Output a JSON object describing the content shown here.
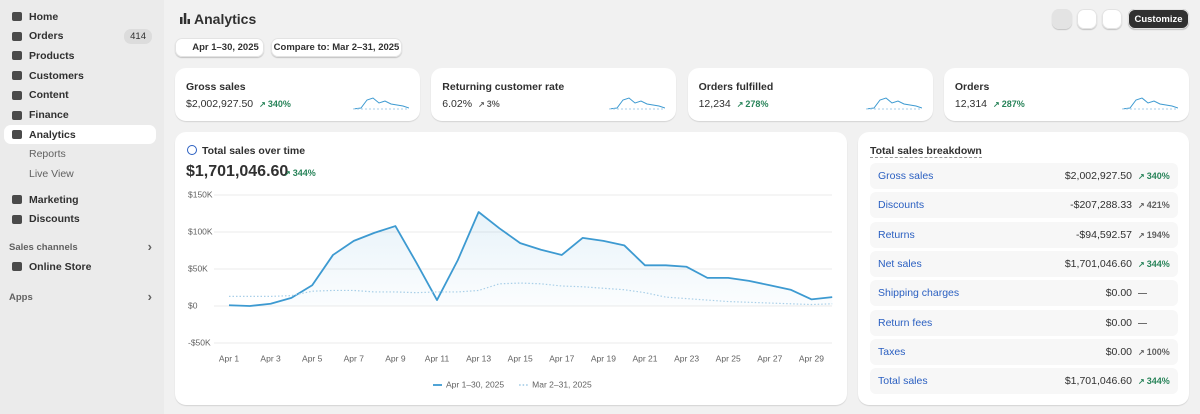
{
  "sidebar": {
    "items": [
      {
        "label": "Home"
      },
      {
        "label": "Orders",
        "badge": 414
      },
      {
        "label": "Products"
      },
      {
        "label": "Customers"
      },
      {
        "label": "Content"
      },
      {
        "label": "Finance"
      },
      {
        "label": "Analytics",
        "active": true
      }
    ],
    "sub_items": [
      "Reports",
      "Live View"
    ],
    "items2": [
      {
        "label": "Marketing"
      },
      {
        "label": "Discounts"
      }
    ],
    "sales_channels": {
      "title": "Sales channels",
      "items": [
        "Online Store"
      ]
    },
    "apps": {
      "title": "Apps"
    }
  },
  "header": {
    "title": "Analytics",
    "button": "Customize",
    "date_range": "Apr 1–30, 2025",
    "compare": "Compare to: Mar 2–31, 2025"
  },
  "kpis": [
    {
      "label": "Gross sales",
      "value": "$2,002,927.50",
      "change": "340%",
      "trend": "up"
    },
    {
      "label": "Returning customer rate",
      "value": "6.02%",
      "change": "3%",
      "trend": "neutral"
    },
    {
      "label": "Orders fulfilled",
      "value": "12,234",
      "change": "278%",
      "trend": "up"
    },
    {
      "label": "Orders",
      "value": "12,314",
      "change": "287%",
      "trend": "up"
    }
  ],
  "chart_card": {
    "title": "Total sales over time",
    "total": "$1,701,046.60",
    "change": "344%",
    "trend": "up"
  },
  "chart_data": {
    "type": "line",
    "categories": [
      "Apr 1",
      null,
      "Apr 3",
      null,
      "Apr 5",
      null,
      "Apr 7",
      null,
      "Apr 9",
      null,
      "Apr 11",
      null,
      "Apr 13",
      null,
      "Apr 15",
      null,
      "Apr 17",
      null,
      "Apr 19",
      null,
      "Apr 21",
      null,
      "Apr 23",
      null,
      "Apr 25",
      null,
      "Apr 27",
      null,
      "Apr 29",
      null
    ],
    "series": [
      {
        "name": "Apr 1–30, 2025",
        "color": "#3d9ad1",
        "values": [
          1000,
          0,
          3000,
          11000,
          28000,
          69000,
          88000,
          99000,
          108000,
          59000,
          8000,
          62000,
          127000,
          105000,
          85000,
          76000,
          69000,
          92000,
          88000,
          82000,
          55000,
          55000,
          53000,
          38000,
          38000,
          34000,
          28000,
          22000,
          9000,
          12000
        ]
      },
      {
        "name": "Mar 2–31, 2025",
        "color": "#a9cfe8",
        "dashed": true,
        "values": [
          13000,
          13000,
          13000,
          14000,
          20000,
          21000,
          21000,
          19000,
          19000,
          18000,
          19000,
          19000,
          21000,
          30000,
          31000,
          30000,
          27000,
          26000,
          24000,
          22000,
          18000,
          12000,
          10000,
          8000,
          6000,
          5000,
          4000,
          3000,
          2000,
          3000
        ]
      }
    ],
    "ylim": [
      -50000,
      150000
    ],
    "yticks": [
      {
        "value": -50000,
        "label": "-$50K"
      },
      {
        "value": 0,
        "label": "$0"
      },
      {
        "value": 50000,
        "label": "$50K"
      },
      {
        "value": 100000,
        "label": "$100K"
      },
      {
        "value": 150000,
        "label": "$150K"
      }
    ],
    "grid": true,
    "legend": "bottom"
  },
  "breakdown": {
    "title": "Total sales breakdown",
    "rows": [
      {
        "label": "Gross sales",
        "value": "$2,002,927.50",
        "change": "340%",
        "trend": "up"
      },
      {
        "label": "Discounts",
        "value": "-$207,288.33",
        "change": "421%",
        "trend": "neutral"
      },
      {
        "label": "Returns",
        "value": "-$94,592.57",
        "change": "194%",
        "trend": "neutral"
      },
      {
        "label": "Net sales",
        "value": "$1,701,046.60",
        "change": "344%",
        "trend": "up"
      },
      {
        "label": "Shipping charges",
        "value": "$0.00",
        "change": "—",
        "trend": "none"
      },
      {
        "label": "Return fees",
        "value": "$0.00",
        "change": "—",
        "trend": "none"
      },
      {
        "label": "Taxes",
        "value": "$0.00",
        "change": "100%",
        "trend": "neutral"
      },
      {
        "label": "Total sales",
        "value": "$1,701,046.60",
        "change": "344%",
        "trend": "up"
      }
    ]
  }
}
